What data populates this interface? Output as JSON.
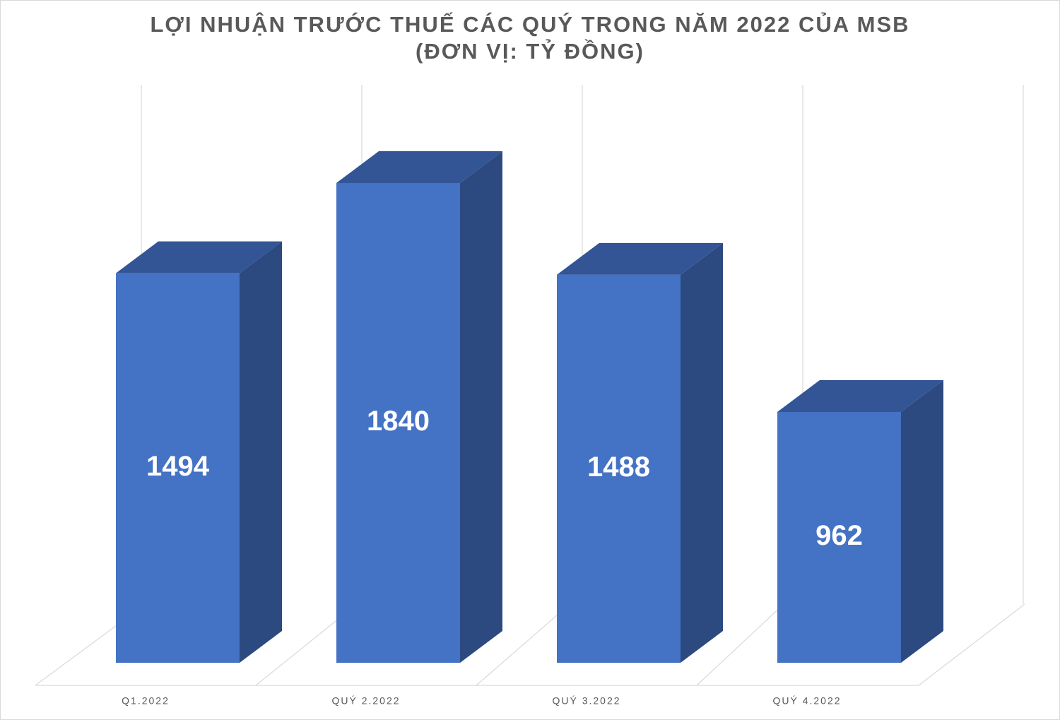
{
  "chart_data": {
    "type": "bar",
    "title": "LỢI NHUẬN TRƯỚC THUẾ CÁC QUÝ TRONG NĂM 2022 CỦA MSB",
    "subtitle": "(ĐƠN VỊ: TỶ ĐỒNG)",
    "categories": [
      "Q1.2022",
      "QUÝ 2.2022",
      "QUÝ 3.2022",
      "QUÝ 4.2022"
    ],
    "values": [
      1494,
      1840,
      1488,
      962
    ],
    "color": "#4472c4",
    "ylim": [
      0,
      2100
    ]
  }
}
